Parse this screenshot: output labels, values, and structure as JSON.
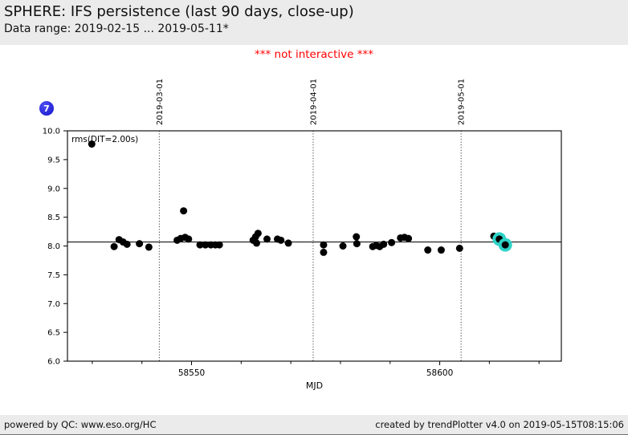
{
  "header": {
    "title": "SPHERE: IFS persistence (last 90 days, close-up)",
    "subtitle": "Data range: 2019-02-15 ... 2019-05-11*"
  },
  "notice": "*** not interactive ***",
  "badge": {
    "value": "7",
    "color": "#1414c8"
  },
  "chart_data": {
    "type": "scatter",
    "title": "",
    "xlabel": "MJD",
    "ylabel": "",
    "legend_label": "rms(DIT=2.00s)",
    "xlim": [
      58525,
      58624.5
    ],
    "ylim": [
      6.0,
      10.0
    ],
    "x_major_ticks": [
      58550,
      58600
    ],
    "x_minor_ticks": [
      58530,
      58540,
      58560,
      58570,
      58580,
      58590,
      58610,
      58620
    ],
    "y_ticks": [
      6.0,
      6.5,
      7.0,
      7.5,
      8.0,
      8.5,
      9.0,
      9.5,
      10.0
    ],
    "date_gridlines": [
      {
        "mjd": 58543.5,
        "label": "2019-03-01"
      },
      {
        "mjd": 58574.5,
        "label": "2019-04-01"
      },
      {
        "mjd": 58604.3,
        "label": "2019-05-01"
      }
    ],
    "reference_line_y": 8.07,
    "grid": false,
    "point_color": "#000000",
    "highlight_color": "#2fd3c7",
    "points": [
      [
        58529.9,
        9.77,
        0
      ],
      [
        58534.4,
        7.99,
        0
      ],
      [
        58535.4,
        8.11,
        0
      ],
      [
        58536.2,
        8.07,
        0
      ],
      [
        58537.0,
        8.03,
        0
      ],
      [
        58539.5,
        8.04,
        0
      ],
      [
        58541.4,
        7.98,
        0
      ],
      [
        58547.1,
        8.1,
        0
      ],
      [
        58547.8,
        8.13,
        0
      ],
      [
        58548.4,
        8.61,
        0
      ],
      [
        58548.7,
        8.15,
        0
      ],
      [
        58549.4,
        8.12,
        0
      ],
      [
        58551.7,
        8.02,
        0
      ],
      [
        58552.8,
        8.02,
        0
      ],
      [
        58553.9,
        8.02,
        0
      ],
      [
        58554.8,
        8.02,
        0
      ],
      [
        58555.6,
        8.02,
        0
      ],
      [
        58562.4,
        8.1,
        0
      ],
      [
        58562.9,
        8.16,
        0
      ],
      [
        58563.1,
        8.05,
        0
      ],
      [
        58563.4,
        8.22,
        0
      ],
      [
        58565.2,
        8.12,
        0
      ],
      [
        58567.3,
        8.12,
        0
      ],
      [
        58568.0,
        8.1,
        0
      ],
      [
        58569.5,
        8.05,
        0
      ],
      [
        58576.6,
        8.02,
        0
      ],
      [
        58576.6,
        7.89,
        0
      ],
      [
        58580.5,
        8.0,
        0
      ],
      [
        58583.2,
        8.16,
        0
      ],
      [
        58583.3,
        8.04,
        0
      ],
      [
        58586.5,
        7.99,
        0
      ],
      [
        58587.2,
        8.01,
        0
      ],
      [
        58587.9,
        7.99,
        0
      ],
      [
        58588.7,
        8.03,
        0
      ],
      [
        58590.3,
        8.06,
        0
      ],
      [
        58592.1,
        8.14,
        0
      ],
      [
        58592.9,
        8.15,
        0
      ],
      [
        58593.7,
        8.13,
        0
      ],
      [
        58597.6,
        7.93,
        0
      ],
      [
        58600.3,
        7.93,
        0
      ],
      [
        58604.0,
        7.96,
        0
      ],
      [
        58610.9,
        8.17,
        0
      ],
      [
        58612.0,
        8.12,
        1
      ],
      [
        58613.2,
        8.02,
        1
      ]
    ]
  },
  "footer": {
    "left": "powered by QC: www.eso.org/HC",
    "right": "created by trendPlotter v4.0 on 2019-05-15T08:15:06"
  }
}
